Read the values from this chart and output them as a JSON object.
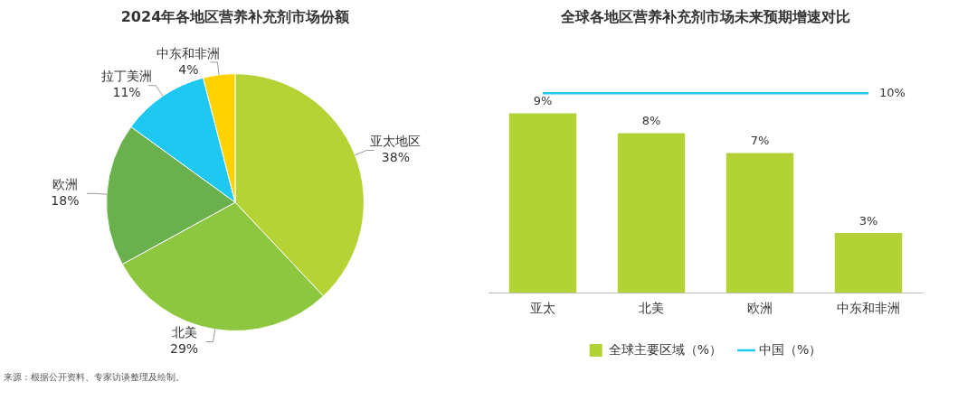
{
  "chart_data": [
    {
      "type": "pie",
      "title": "2024年各地区营养补充剂市场份额",
      "categories": [
        "亚太地区",
        "北美",
        "欧洲",
        "拉丁美洲",
        "中东和非洲"
      ],
      "values": [
        38,
        29,
        18,
        11,
        4
      ],
      "colors": [
        "#b5d334",
        "#8dc63f",
        "#6ab04c",
        "#1ec8f0",
        "#ffd200"
      ],
      "value_labels": [
        "38%",
        "29%",
        "18%",
        "11%",
        "4%"
      ],
      "annotations": [
        "来源：根据公开资料、专家访谈整理及绘制。"
      ]
    },
    {
      "type": "bar",
      "title": "全球各地区营养补充剂市场未来预期增速对比",
      "categories": [
        "亚太",
        "北美",
        "欧洲",
        "中东和非洲"
      ],
      "legend": "bottom",
      "tick_labels": "x",
      "series": [
        {
          "type": "bar",
          "name": "全球主要区域（%）",
          "color": "#b2d235",
          "values": [
            9,
            8,
            7,
            3
          ],
          "value_labels": [
            "9%",
            "8%",
            "7%",
            "3%"
          ]
        },
        {
          "type": "line",
          "name": "中国（%）",
          "color": "#1ec8f0",
          "values": [
            10,
            10,
            10,
            10
          ],
          "marker": "none",
          "value_labels": [
            null,
            null,
            null,
            "10%"
          ]
        }
      ]
    }
  ]
}
